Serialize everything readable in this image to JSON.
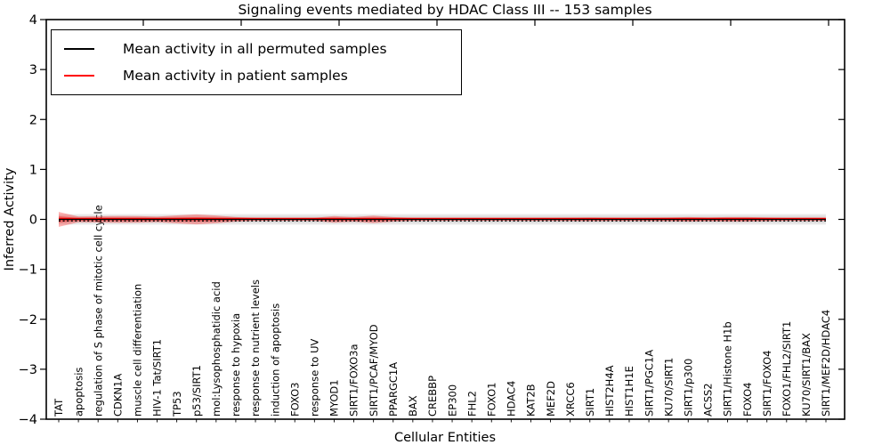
{
  "chart_data": {
    "type": "line",
    "title": "Signaling events mediated by HDAC Class III -- 153 samples",
    "xlabel": "Cellular Entities",
    "ylabel": "Inferred Activity",
    "ylim": [
      -4,
      4
    ],
    "yticks": [
      4,
      3,
      2,
      1,
      0,
      -1,
      -2,
      -3,
      -4
    ],
    "grid": false,
    "legend_position": "upper left",
    "legend_items": [
      {
        "label": "Mean activity in all permuted samples",
        "color": "#000000"
      },
      {
        "label": "Mean activity in patient samples",
        "color": "#ff0000"
      }
    ],
    "entities": [
      "TAT",
      "apoptosis",
      "regulation of S phase of mitotic cell cycle",
      "CDKN1A",
      "muscle cell differentiation",
      "HIV-1 Tat/SIRT1",
      "TP53",
      "p53/SIRT1",
      "mol:Lysophosphatidic acid",
      "response to hypoxia",
      "response to nutrient levels",
      "induction of apoptosis",
      "FOXO3",
      "response to UV",
      "MYOD1",
      "SIRT1/FOXO3a",
      "SIRT1/PCAF/MYOD",
      "PPARGC1A",
      "BAX",
      "CREBBP",
      "EP300",
      "FHL2",
      "FOXO1",
      "HDAC4",
      "KAT2B",
      "MEF2D",
      "XRCC6",
      "SIRT1",
      "HIST2H4A",
      "HIST1H1E",
      "SIRT1/PGC1A",
      "KU70/SIRT1",
      "SIRT1/p300",
      "ACSS2",
      "SIRT1/Histone H1b",
      "FOXO4",
      "SIRT1/FOXO4",
      "FOXO1/FHL2/SIRT1",
      "KU70/SIRT1/BAX",
      "SIRT1/MEF2D/HDAC4"
    ],
    "series": [
      {
        "name": "Mean activity in all permuted samples",
        "color": "#000000",
        "values": [
          0,
          0,
          0,
          0,
          0,
          0,
          0,
          0,
          0,
          0,
          0,
          0,
          0,
          0,
          0,
          0,
          0,
          0,
          0,
          0,
          0,
          0,
          0,
          0,
          0,
          0,
          0,
          0,
          0,
          0,
          0,
          0,
          0,
          0,
          0,
          0,
          0,
          0,
          0,
          0
        ],
        "band_halfwidth": [
          0.105,
          0.105,
          0.105,
          0.105,
          0.105,
          0.105,
          0.105,
          0.105,
          0.105,
          0.105,
          0.105,
          0.105,
          0.105,
          0.105,
          0.105,
          0.105,
          0.105,
          0.105,
          0.105,
          0.105,
          0.105,
          0.105,
          0.105,
          0.105,
          0.105,
          0.105,
          0.105,
          0.105,
          0.105,
          0.105,
          0.105,
          0.105,
          0.105,
          0.105,
          0.105,
          0.105,
          0.105,
          0.105,
          0.105,
          0.105
        ],
        "band_color": "#999999"
      },
      {
        "name": "Mean activity in patient samples",
        "color": "#ff0000",
        "values": [
          0.01,
          0.01,
          0.01,
          0.01,
          0.01,
          0.01,
          0.01,
          0.01,
          0.01,
          0.01,
          0.01,
          0.01,
          0.01,
          0.01,
          0.01,
          0.01,
          0.01,
          0.01,
          0.01,
          0.01,
          0.01,
          0.01,
          0.01,
          0.01,
          0.01,
          0.01,
          0.01,
          0.01,
          0.01,
          0.01,
          0.01,
          0.01,
          0.01,
          0.01,
          0.01,
          0.01,
          0.01,
          0.01,
          0.01,
          0.01
        ],
        "band_halfwidth": [
          0.15,
          0.058,
          0.062,
          0.07,
          0.068,
          0.056,
          0.08,
          0.1,
          0.078,
          0.046,
          0.03,
          0.028,
          0.028,
          0.032,
          0.066,
          0.046,
          0.074,
          0.046,
          0.03,
          0.028,
          0.028,
          0.028,
          0.028,
          0.028,
          0.03,
          0.03,
          0.034,
          0.038,
          0.034,
          0.03,
          0.034,
          0.038,
          0.046,
          0.038,
          0.046,
          0.046,
          0.038,
          0.03,
          0.034,
          0.03
        ],
        "band_color": "#ff0000"
      }
    ],
    "baseline_dotted_line_value": -0.03
  }
}
